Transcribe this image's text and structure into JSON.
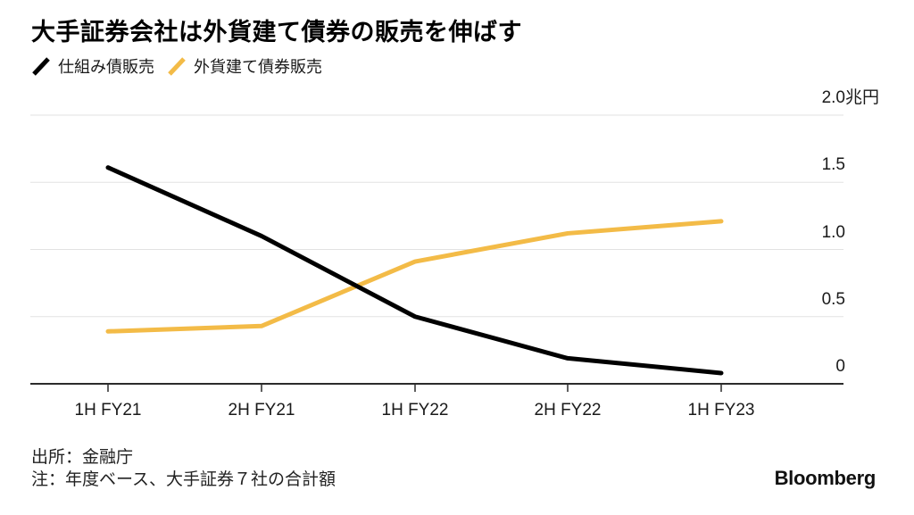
{
  "title": "大手証券会社は外貨建て債券の販売を伸ばす",
  "legend": {
    "items": [
      {
        "label": "仕組み債販売",
        "color": "#000000"
      },
      {
        "label": "外貨建て債券販売",
        "color": "#F3BB47"
      }
    ]
  },
  "chart_data": {
    "type": "line",
    "title": "大手証券会社は外貨建て債券の販売を伸ばす",
    "categories": [
      "1H FY21",
      "2H FY21",
      "1H FY22",
      "2H FY22",
      "1H FY23"
    ],
    "series": [
      {
        "name": "仕組み債販売",
        "color": "#000000",
        "values": [
          1.61,
          1.1,
          0.5,
          0.19,
          0.08
        ]
      },
      {
        "name": "外貨建て債券販売",
        "color": "#F3BB47",
        "values": [
          0.39,
          0.43,
          0.91,
          1.12,
          1.21
        ]
      }
    ],
    "y_axis": {
      "unit": "兆円",
      "range": [
        0,
        2.0
      ],
      "ticks": [
        {
          "label": "2.0",
          "unit": "兆円",
          "value": 2.0
        },
        {
          "label": "1.5",
          "unit": "",
          "value": 1.5
        },
        {
          "label": "1.0",
          "unit": "",
          "value": 1.0
        },
        {
          "label": "0.5",
          "unit": "",
          "value": 0.5
        },
        {
          "label": "0",
          "unit": "",
          "value": 0
        }
      ]
    },
    "grid": "horizontal",
    "legend_position": "top-left"
  },
  "footer": {
    "source": "出所：金融庁",
    "note": "注：年度ベース、大手証券７社の合計額",
    "brand": "Bloomberg"
  }
}
